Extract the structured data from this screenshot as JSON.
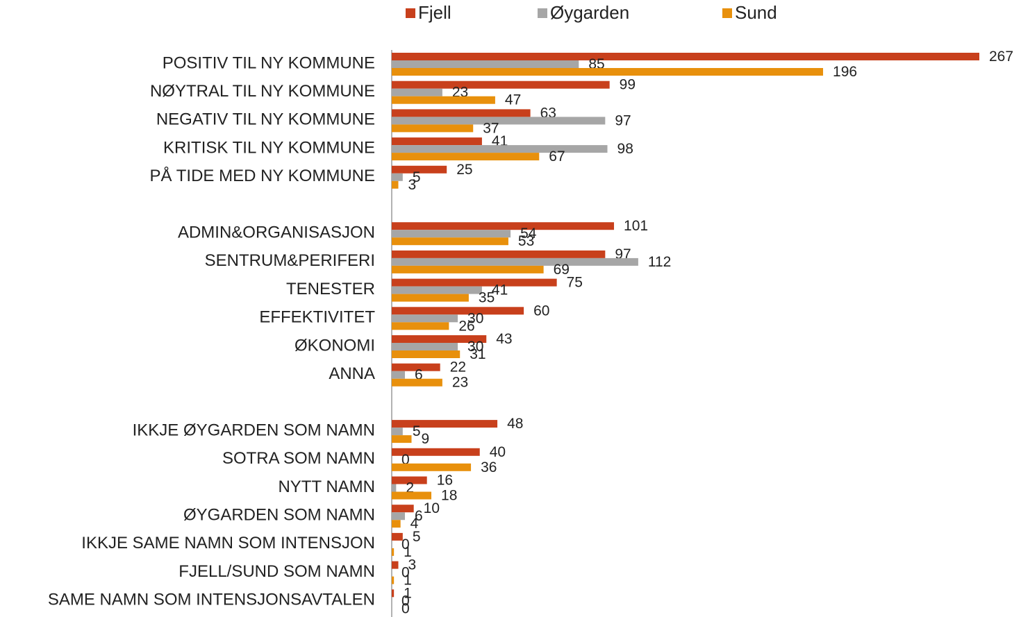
{
  "chart_data": {
    "type": "bar",
    "orientation": "horizontal",
    "categories": [
      "POSITIV TIL NY KOMMUNE",
      "NØYTRAL TIL NY KOMMUNE",
      "NEGATIV TIL NY KOMMUNE",
      "KRITISK TIL NY KOMMUNE",
      "PÅ TIDE MED NY KOMMUNE",
      null,
      "ADMIN&ORGANISASJON",
      "SENTRUM&PERIFERI",
      "TENESTER",
      "EFFEKTIVITET",
      "ØKONOMI",
      "ANNA",
      null,
      "IKKJE ØYGARDEN SOM NAMN",
      "SOTRA SOM NAMN",
      "NYTT NAMN",
      "ØYGARDEN SOM NAMN",
      "IKKJE SAME NAMN SOM INTENSJON",
      "FJELL/SUND SOM NAMN",
      "SAME NAMN SOM INTENSJONSAVTALEN"
    ],
    "series": [
      {
        "name": "Fjell",
        "color": "#c8401c",
        "values": [
          267,
          99,
          63,
          41,
          25,
          null,
          101,
          97,
          75,
          60,
          43,
          22,
          null,
          48,
          40,
          16,
          10,
          5,
          3,
          1
        ]
      },
      {
        "name": "Øygarden",
        "color": "#a6a6a6",
        "values": [
          85,
          23,
          97,
          98,
          5,
          null,
          54,
          112,
          41,
          30,
          30,
          6,
          null,
          5,
          0,
          2,
          6,
          0,
          0,
          0
        ]
      },
      {
        "name": "Sund",
        "color": "#e8900c",
        "values": [
          196,
          47,
          37,
          67,
          3,
          null,
          53,
          69,
          35,
          26,
          31,
          23,
          null,
          9,
          36,
          18,
          4,
          1,
          1,
          0
        ]
      }
    ],
    "xlim": [
      0,
      267
    ],
    "legend": "top"
  }
}
